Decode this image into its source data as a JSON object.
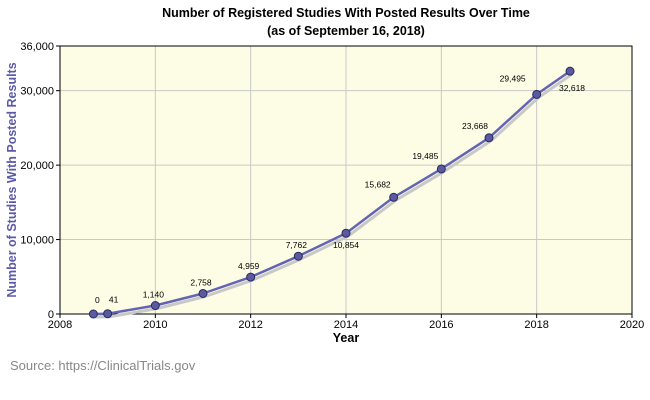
{
  "chart_data": {
    "type": "line",
    "title": "Number of Registered Studies With Posted Results Over Time",
    "subtitle": "(as of September 16, 2018)",
    "xlabel": "Year",
    "ylabel": "Number of Studies With Posted Results",
    "xlim": [
      2008,
      2020
    ],
    "ylim": [
      0,
      36000
    ],
    "x_ticks": [
      {
        "value": 2008,
        "label": "2008"
      },
      {
        "value": 2010,
        "label": "2010"
      },
      {
        "value": 2012,
        "label": "2012"
      },
      {
        "value": 2014,
        "label": "2014"
      },
      {
        "value": 2016,
        "label": "2016"
      },
      {
        "value": 2018,
        "label": "2018"
      },
      {
        "value": 2020,
        "label": "2020"
      }
    ],
    "y_ticks": [
      {
        "value": 0,
        "label": "0"
      },
      {
        "value": 10000,
        "label": "10,000"
      },
      {
        "value": 20000,
        "label": "20,000"
      },
      {
        "value": 30000,
        "label": "30,000"
      },
      {
        "value": 36000,
        "label": "36,000"
      }
    ],
    "grid": true,
    "series": [
      {
        "points": [
          {
            "x": 2008.7,
            "y": 0,
            "label": "0"
          },
          {
            "x": 2009.0,
            "y": 41,
            "label": "41"
          },
          {
            "x": 2010.0,
            "y": 1140,
            "label": "1,140"
          },
          {
            "x": 2011.0,
            "y": 2758,
            "label": "2,758"
          },
          {
            "x": 2012.0,
            "y": 4959,
            "label": "4,959"
          },
          {
            "x": 2013.0,
            "y": 7762,
            "label": "7,762"
          },
          {
            "x": 2014.0,
            "y": 10854,
            "label": "10,854"
          },
          {
            "x": 2015.0,
            "y": 15682,
            "label": "15,682"
          },
          {
            "x": 2016.0,
            "y": 19485,
            "label": "19,485"
          },
          {
            "x": 2017.0,
            "y": 23668,
            "label": "23,668"
          },
          {
            "x": 2018.0,
            "y": 29495,
            "label": "29,495"
          },
          {
            "x": 2018.7,
            "y": 32618,
            "label": "32,618"
          }
        ]
      }
    ],
    "colors": {
      "plot_background": "#fdfde6",
      "grid": "#c8c8c8",
      "line": "#6464b4",
      "marker": "#5a5aa0",
      "marker_stroke": "#2a2a60",
      "shadow": "#c8c8c8"
    },
    "source": "Source: https://ClinicalTrials.gov"
  }
}
